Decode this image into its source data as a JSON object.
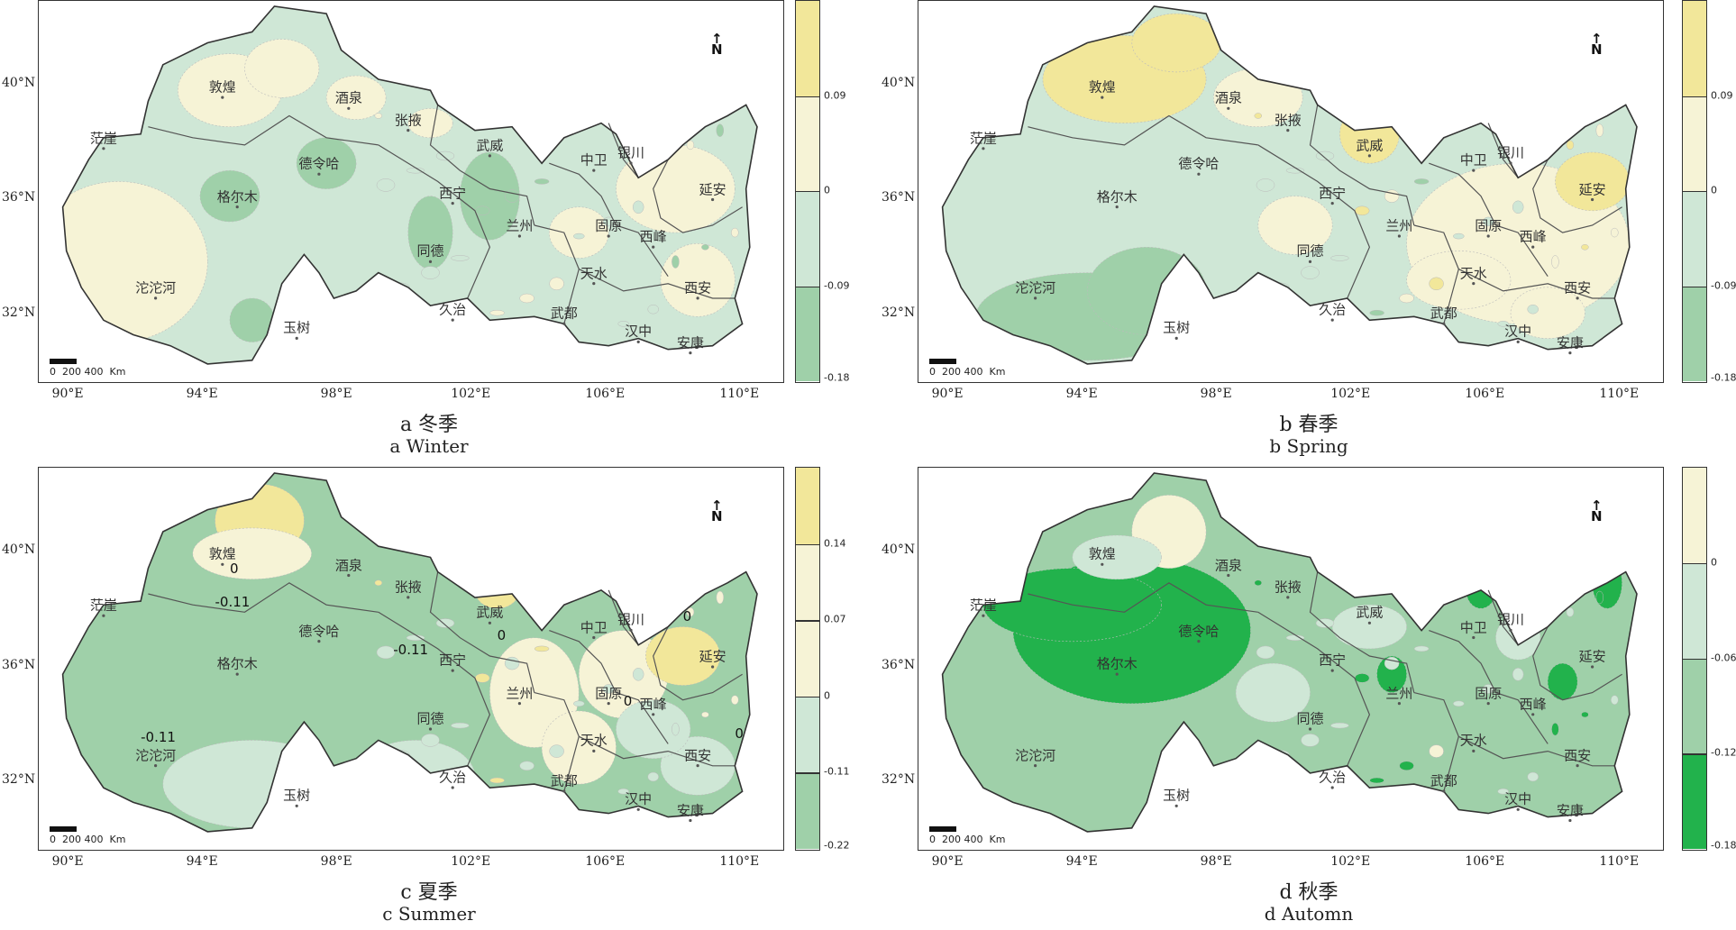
{
  "lat_ticks": [
    "40°N",
    "36°N",
    "32°N"
  ],
  "lon_ticks": [
    "90°E",
    "94°E",
    "98°E",
    "102°E",
    "106°E",
    "110°E"
  ],
  "north_label": "N",
  "scale": {
    "zero": "0",
    "mid": "200",
    "max": "400",
    "unit": "Km"
  },
  "cities": [
    "敦煌",
    "酒泉",
    "张掖",
    "茫崖",
    "武威",
    "中卫",
    "银川",
    "德令哈",
    "格尔木",
    "西宁",
    "兰州",
    "固原",
    "西峰",
    "延安",
    "同德",
    "天水",
    "沱沱河",
    "玉树",
    "久治",
    "武都",
    "汉中",
    "西安",
    "安康"
  ],
  "panels": [
    {
      "caption_cn": "a 冬季",
      "caption_en": "a Winter",
      "legend": [
        "0.09",
        "0",
        "-0.09",
        "-0.18"
      ],
      "contour_labels": []
    },
    {
      "caption_cn": "b 春季",
      "caption_en": "b Spring",
      "legend": [
        "0.09",
        "0",
        "-0.09",
        "-0.18"
      ],
      "contour_labels": []
    },
    {
      "caption_cn": "c 夏季",
      "caption_en": "c Summer",
      "legend": [
        "0.14",
        "0.07",
        "0",
        "-0.11",
        "-0.22"
      ],
      "contour_labels": [
        "0",
        "-0.11",
        "-0.11",
        "-0.11",
        "0",
        "0",
        "0",
        "0"
      ]
    },
    {
      "caption_cn": "d 秋季",
      "caption_en": "d Automn",
      "legend": [
        "0",
        "-0.06",
        "-0.12",
        "-0.18"
      ],
      "contour_labels": []
    }
  ],
  "colors": {
    "yellow_strong": "#f2e79a",
    "yellow_light": "#f6f3d6",
    "green_light": "#cfe7d6",
    "green_mid": "#9fd0a9",
    "green_dark": "#22b24c",
    "frame": "#333333"
  }
}
